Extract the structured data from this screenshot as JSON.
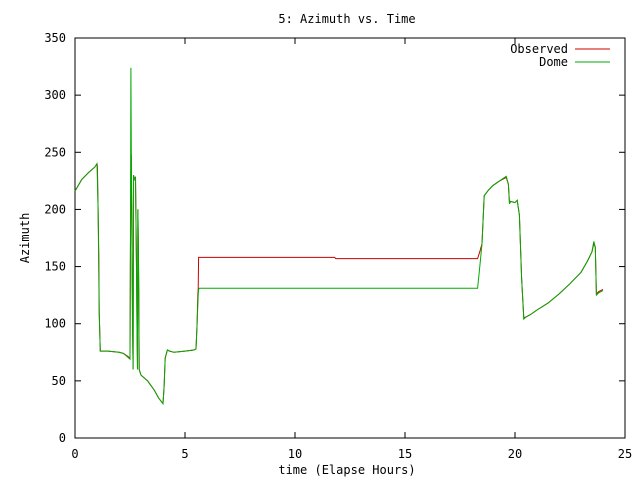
{
  "chart_data": {
    "type": "line",
    "title": "5: Azimuth vs. Time",
    "xlabel": "time (Elapse Hours)",
    "ylabel": "Azimuth",
    "xlim": [
      0,
      25
    ],
    "ylim": [
      0,
      350
    ],
    "xticks": [
      "0",
      "5",
      "10",
      "15",
      "20",
      "25"
    ],
    "yticks": [
      "0",
      "50",
      "100",
      "150",
      "200",
      "250",
      "300",
      "350"
    ],
    "grid": false,
    "legend_position": "top-right",
    "series": [
      {
        "name": "Observed",
        "color": "#cc0000",
        "x": [
          0,
          0.3,
          0.6,
          0.9,
          1.0,
          1.02,
          1.05,
          1.08,
          1.1,
          1.15,
          1.5,
          2.0,
          2.2,
          2.5,
          2.52,
          2.54,
          2.56,
          2.58,
          2.6,
          2.62,
          2.64,
          2.66,
          2.7,
          2.75,
          2.8,
          2.82,
          2.84,
          2.86,
          2.88,
          2.9,
          2.92,
          2.95,
          3.0,
          3.3,
          3.6,
          3.8,
          4.0,
          4.05,
          4.1,
          4.2,
          4.3,
          4.5,
          5.0,
          5.4,
          5.5,
          5.55,
          5.58,
          5.6,
          5.62,
          5.65,
          6.0,
          8.0,
          10.0,
          11.8,
          11.85,
          12.0,
          14.0,
          16.0,
          18.3,
          18.4,
          18.5,
          18.6,
          18.8,
          19.0,
          19.3,
          19.6,
          19.7,
          19.75,
          19.8,
          20.0,
          20.1,
          20.2,
          20.3,
          20.4,
          20.5,
          20.7,
          21.0,
          21.5,
          22.0,
          22.5,
          23.0,
          23.3,
          23.5,
          23.58,
          23.65,
          23.7,
          23.8,
          23.9,
          24.0
        ],
        "y": [
          216,
          226,
          232,
          237,
          240,
          238,
          200,
          160,
          110,
          76,
          76,
          75,
          74,
          70,
          160,
          230,
          248,
          190,
          140,
          95,
          60,
          230,
          227,
          228,
          140,
          95,
          60,
          200,
          165,
          125,
          60,
          58,
          55,
          50,
          42,
          35,
          30,
          45,
          70,
          77,
          76,
          75,
          76,
          77,
          78,
          100,
          125,
          130,
          158,
          158,
          158,
          158,
          158,
          158,
          157,
          157,
          157,
          157,
          157,
          163,
          170,
          212,
          217,
          221,
          225,
          228,
          222,
          205,
          207,
          206,
          208,
          195,
          140,
          105,
          106,
          108,
          112,
          118,
          126,
          135,
          145,
          155,
          163,
          170,
          167,
          126,
          128,
          129,
          130
        ]
      },
      {
        "name": "Dome",
        "color": "#00aa00",
        "x": [
          0,
          0.3,
          0.6,
          0.9,
          1.0,
          1.05,
          1.1,
          1.15,
          1.5,
          2.0,
          2.2,
          2.5,
          2.52,
          2.54,
          2.56,
          2.58,
          2.6,
          2.62,
          2.64,
          2.66,
          2.7,
          2.75,
          2.8,
          2.82,
          2.84,
          2.86,
          2.88,
          2.9,
          2.92,
          2.95,
          3.0,
          3.3,
          3.6,
          3.8,
          4.0,
          4.05,
          4.1,
          4.2,
          4.3,
          4.5,
          5.0,
          5.4,
          5.5,
          5.55,
          5.6,
          5.62,
          5.65,
          6.0,
          8.0,
          10.0,
          12.0,
          14.0,
          16.0,
          18.3,
          18.4,
          18.5,
          18.6,
          18.8,
          19.0,
          19.3,
          19.6,
          19.7,
          19.75,
          19.8,
          20.0,
          20.1,
          20.2,
          20.3,
          20.4,
          20.5,
          20.7,
          21.0,
          21.5,
          22.0,
          22.5,
          23.0,
          23.3,
          23.5,
          23.58,
          23.65,
          23.7,
          23.8,
          23.9,
          24.0
        ],
        "y": [
          216,
          226,
          232,
          237,
          240,
          200,
          110,
          76,
          76,
          75,
          74,
          69,
          160,
          324,
          250,
          190,
          140,
          95,
          60,
          230,
          226,
          228,
          140,
          95,
          60,
          200,
          165,
          125,
          60,
          58,
          55,
          50,
          42,
          35,
          30,
          45,
          70,
          77,
          76,
          75,
          76,
          77,
          78,
          100,
          125,
          130,
          131,
          131,
          131,
          131,
          131,
          131,
          131,
          131,
          150,
          170,
          212,
          217,
          221,
          225,
          229,
          222,
          205,
          207,
          206,
          208,
          195,
          140,
          104,
          106,
          108,
          112,
          118,
          126,
          135,
          145,
          155,
          163,
          172,
          167,
          125,
          127,
          128,
          129
        ]
      }
    ]
  }
}
